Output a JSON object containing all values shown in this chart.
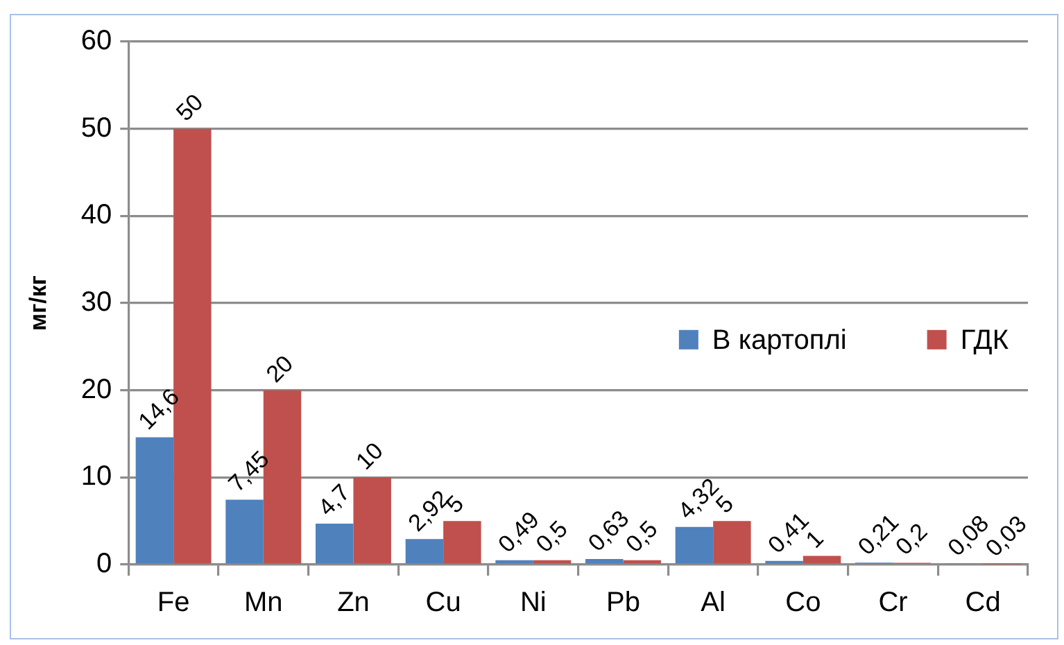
{
  "chart_data": {
    "type": "bar",
    "ylabel": "мг/кг",
    "categories": [
      "Fe",
      "Mn",
      "Zn",
      "Cu",
      "Ni",
      "Pb",
      "Al",
      "Co",
      "Cr",
      "Cd"
    ],
    "series": [
      {
        "name": "В картоплі",
        "color": "#4f81bd",
        "values": [
          14.6,
          7.45,
          4.7,
          2.92,
          0.49,
          0.63,
          4.32,
          0.41,
          0.21,
          0.08
        ],
        "value_labels": [
          "14,6",
          "7,45",
          "4,7",
          "2,92",
          "0,49",
          "0,63",
          "4,32",
          "0,41",
          "0,21",
          "0,08"
        ]
      },
      {
        "name": "ГДК",
        "color": "#c0504d",
        "values": [
          50,
          20,
          10,
          5,
          0.5,
          0.5,
          5,
          1,
          0.2,
          0.03
        ],
        "value_labels": [
          "50",
          "20",
          "10",
          "5",
          "0,5",
          "0,5",
          "5",
          "1",
          "0,2",
          "0,03"
        ]
      }
    ],
    "ylim": [
      0,
      60
    ],
    "yticks": [
      0,
      10,
      20,
      30,
      40,
      50,
      60
    ],
    "grid": "y",
    "legend": "right"
  }
}
